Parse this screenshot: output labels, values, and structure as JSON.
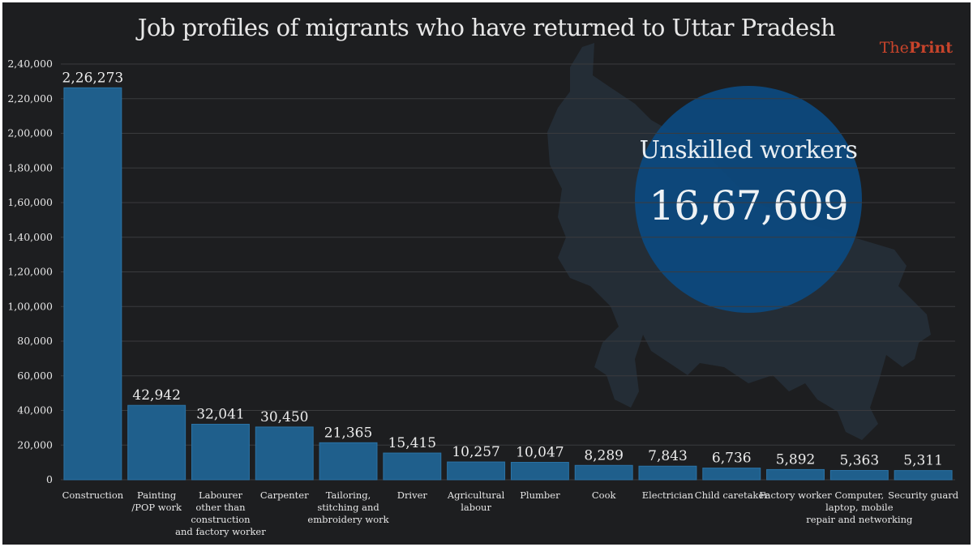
{
  "title": "Job profiles of migrants who have returned to Uttar Pradesh",
  "brand": {
    "prefix": "The",
    "suffix": "Print"
  },
  "callout": {
    "label": "Unskilled workers",
    "value": "16,67,609"
  },
  "colors": {
    "background": "#1d1e20",
    "bar": "#1f5f8c",
    "bar_edge": "#2b73a6",
    "callout": "#0c4a80",
    "brand": "#c8442b",
    "map": "#2a3a48"
  },
  "chart_data": {
    "type": "bar",
    "title": "Job profiles of migrants who have returned to Uttar Pradesh",
    "xlabel": "",
    "ylabel": "",
    "ylim": [
      0,
      240000
    ],
    "grid": true,
    "yticks": [
      0,
      20000,
      40000,
      60000,
      80000,
      100000,
      120000,
      140000,
      160000,
      180000,
      200000,
      220000,
      240000
    ],
    "ytick_labels": [
      "0",
      "20,000",
      "40,000",
      "60,000",
      "80,000",
      "1,00,000",
      "1,20,000",
      "1,40,000",
      "1,60,000",
      "1,80,000",
      "2,00,000",
      "2,20,000",
      "2,40,000"
    ],
    "categories": [
      [
        "Construction"
      ],
      [
        "Painting",
        "/POP work"
      ],
      [
        "Labourer",
        "other than",
        "construction",
        "and factory worker"
      ],
      [
        "Carpenter"
      ],
      [
        "Tailoring,",
        "stitching and",
        "embroidery work"
      ],
      [
        "Driver"
      ],
      [
        "Agricultural",
        "labour"
      ],
      [
        "Plumber"
      ],
      [
        "Cook"
      ],
      [
        "Electrician"
      ],
      [
        "Child caretaker"
      ],
      [
        "Factory worker"
      ],
      [
        "Computer,",
        "laptop, mobile",
        "repair and networking"
      ],
      [
        "Security guard"
      ]
    ],
    "values": [
      226273,
      42942,
      32041,
      30450,
      21365,
      15415,
      10257,
      10047,
      8289,
      7843,
      6736,
      5892,
      5363,
      5311
    ],
    "value_labels": [
      "2,26,273",
      "42,942",
      "32,041",
      "30,450",
      "21,365",
      "15,415",
      "10,257",
      "10,047",
      "8,289",
      "7,843",
      "6,736",
      "5,892",
      "5,363",
      "5,311"
    ]
  }
}
